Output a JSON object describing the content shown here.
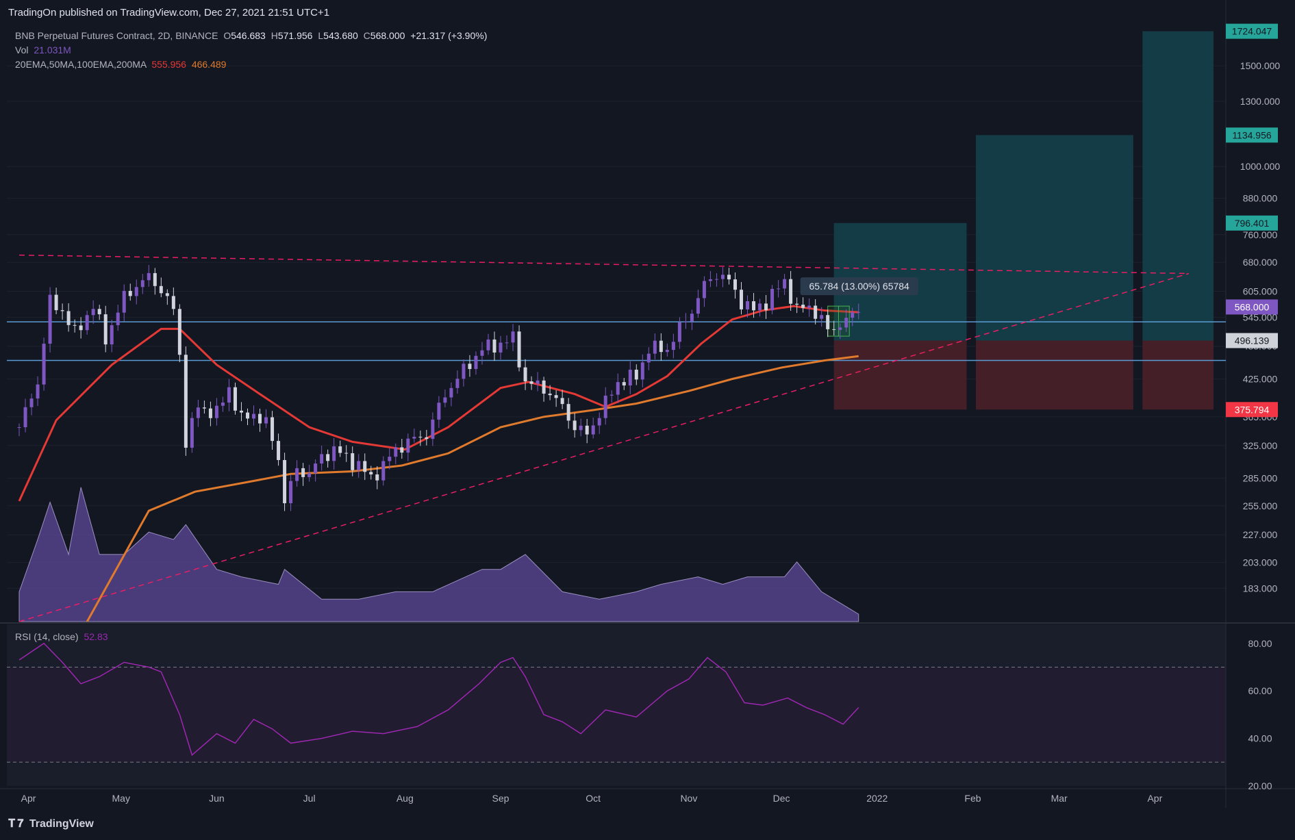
{
  "header": {
    "published": "TradingOn published on TradingView.com, Dec 27, 2021 21:51 UTC+1"
  },
  "legend": {
    "symbol": "BNB Perpetual Futures Contract, 2D, BINANCE",
    "o_label": "O",
    "o": "546.683",
    "h_label": "H",
    "h": "571.956",
    "l_label": "L",
    "l": "543.680",
    "c_label": "C",
    "c": "568.000",
    "change": "+21.317 (+3.90%)",
    "vol_label": "Vol",
    "vol": "21.031M",
    "ma_label": "20EMA,50MA,100EMA,200MA",
    "ma1": "555.956",
    "ma2": "466.489",
    "rsi_label": "RSI (14, close)",
    "rsi": "52.83"
  },
  "footer": {
    "brand": "TradingView"
  },
  "colors": {
    "background": "#131722",
    "bull": "#7e57c2",
    "bear": "#d1d4dc",
    "ema20": "#e53935",
    "ma50": "#e07a2c",
    "trend": "#e91e63",
    "hline": "#5b9bd5",
    "rsi": "#9c27b0",
    "target": "#14404a",
    "stop": "#4a2029"
  },
  "chart_data": {
    "type": "candlestick",
    "price_scale": "log",
    "ylim": [
      160,
      1800
    ],
    "yticks": [
      "1500.000",
      "1300.000",
      "1000.000",
      "880.000",
      "760.000",
      "680.000",
      "605.000",
      "545.000",
      "485.000",
      "425.000",
      "365.000",
      "325.000",
      "285.000",
      "255.000",
      "227.000",
      "203.000",
      "183.000"
    ],
    "xticks": [
      {
        "label": "Apr",
        "date": "2021-04-01"
      },
      {
        "label": "May",
        "date": "2021-05-01"
      },
      {
        "label": "Jun",
        "date": "2021-06-01"
      },
      {
        "label": "Jul",
        "date": "2021-07-01"
      },
      {
        "label": "Aug",
        "date": "2021-08-01"
      },
      {
        "label": "Sep",
        "date": "2021-09-01"
      },
      {
        "label": "Oct",
        "date": "2021-10-01"
      },
      {
        "label": "Nov",
        "date": "2021-11-01"
      },
      {
        "label": "Dec",
        "date": "2021-12-01"
      },
      {
        "label": "2022",
        "date": "2022-01-01"
      },
      {
        "label": "Feb",
        "date": "2022-02-01"
      },
      {
        "label": "Mar",
        "date": "2022-03-01"
      },
      {
        "label": "Apr",
        "date": "2022-04-01"
      }
    ],
    "price_path": [
      [
        "2021-03-29",
        350
      ],
      [
        "2021-04-04",
        420
      ],
      [
        "2021-04-08",
        580
      ],
      [
        "2021-04-12",
        560
      ],
      [
        "2021-04-16",
        510
      ],
      [
        "2021-04-22",
        570
      ],
      [
        "2021-04-26",
        500
      ],
      [
        "2021-05-02",
        590
      ],
      [
        "2021-05-06",
        620
      ],
      [
        "2021-05-10",
        640
      ],
      [
        "2021-05-14",
        610
      ],
      [
        "2021-05-18",
        560
      ],
      [
        "2021-05-20",
        470
      ],
      [
        "2021-05-22",
        330
      ],
      [
        "2021-05-26",
        380
      ],
      [
        "2021-06-01",
        370
      ],
      [
        "2021-06-05",
        410
      ],
      [
        "2021-06-09",
        360
      ],
      [
        "2021-06-13",
        370
      ],
      [
        "2021-06-17",
        355
      ],
      [
        "2021-06-21",
        310
      ],
      [
        "2021-06-23",
        260
      ],
      [
        "2021-06-27",
        295
      ],
      [
        "2021-07-01",
        290
      ],
      [
        "2021-07-05",
        310
      ],
      [
        "2021-07-09",
        320
      ],
      [
        "2021-07-13",
        310
      ],
      [
        "2021-07-17",
        300
      ],
      [
        "2021-07-21",
        285
      ],
      [
        "2021-07-25",
        300
      ],
      [
        "2021-07-29",
        320
      ],
      [
        "2021-08-02",
        330
      ],
      [
        "2021-08-08",
        340
      ],
      [
        "2021-08-14",
        400
      ],
      [
        "2021-08-20",
        440
      ],
      [
        "2021-08-26",
        480
      ],
      [
        "2021-09-01",
        490
      ],
      [
        "2021-09-05",
        500
      ],
      [
        "2021-09-09",
        420
      ],
      [
        "2021-09-15",
        410
      ],
      [
        "2021-09-21",
        380
      ],
      [
        "2021-09-25",
        350
      ],
      [
        "2021-09-29",
        340
      ],
      [
        "2021-10-03",
        370
      ],
      [
        "2021-10-09",
        420
      ],
      [
        "2021-10-15",
        430
      ],
      [
        "2021-10-19",
        480
      ],
      [
        "2021-10-25",
        480
      ],
      [
        "2021-10-29",
        520
      ],
      [
        "2021-11-02",
        560
      ],
      [
        "2021-11-06",
        620
      ],
      [
        "2021-11-10",
        650
      ],
      [
        "2021-11-14",
        630
      ],
      [
        "2021-11-18",
        580
      ],
      [
        "2021-11-22",
        560
      ],
      [
        "2021-11-26",
        580
      ],
      [
        "2021-12-02",
        630
      ],
      [
        "2021-12-06",
        560
      ],
      [
        "2021-12-10",
        570
      ],
      [
        "2021-12-14",
        540
      ],
      [
        "2021-12-16",
        515
      ],
      [
        "2021-12-20",
        530
      ],
      [
        "2021-12-24",
        547
      ],
      [
        "2021-12-26",
        568
      ]
    ],
    "series": [
      {
        "name": "20EMA",
        "values": [
          [
            "2021-03-29",
            260
          ],
          [
            "2021-04-10",
            360
          ],
          [
            "2021-04-28",
            450
          ],
          [
            "2021-05-14",
            520
          ],
          [
            "2021-05-20",
            520
          ],
          [
            "2021-06-01",
            450
          ],
          [
            "2021-06-15",
            400
          ],
          [
            "2021-07-01",
            350
          ],
          [
            "2021-07-15",
            330
          ],
          [
            "2021-08-01",
            320
          ],
          [
            "2021-08-15",
            350
          ],
          [
            "2021-09-01",
            410
          ],
          [
            "2021-09-10",
            420
          ],
          [
            "2021-09-25",
            400
          ],
          [
            "2021-10-05",
            380
          ],
          [
            "2021-10-15",
            400
          ],
          [
            "2021-10-25",
            430
          ],
          [
            "2021-11-05",
            490
          ],
          [
            "2021-11-15",
            540
          ],
          [
            "2021-11-25",
            560
          ],
          [
            "2021-12-05",
            570
          ],
          [
            "2021-12-15",
            560
          ],
          [
            "2021-12-26",
            556
          ]
        ]
      },
      {
        "name": "50MA",
        "values": [
          [
            "2021-04-20",
            160
          ],
          [
            "2021-05-10",
            250
          ],
          [
            "2021-05-25",
            270
          ],
          [
            "2021-06-10",
            280
          ],
          [
            "2021-06-25",
            290
          ],
          [
            "2021-07-15",
            293
          ],
          [
            "2021-07-31",
            300
          ],
          [
            "2021-08-15",
            315
          ],
          [
            "2021-09-01",
            350
          ],
          [
            "2021-09-15",
            365
          ],
          [
            "2021-10-01",
            375
          ],
          [
            "2021-10-15",
            385
          ],
          [
            "2021-11-01",
            405
          ],
          [
            "2021-11-15",
            425
          ],
          [
            "2021-12-01",
            445
          ],
          [
            "2021-12-15",
            458
          ],
          [
            "2021-12-26",
            466
          ]
        ]
      }
    ],
    "volume": [
      [
        "2021-03-29",
        0.2
      ],
      [
        "2021-04-04",
        0.55
      ],
      [
        "2021-04-08",
        0.8
      ],
      [
        "2021-04-14",
        0.45
      ],
      [
        "2021-04-18",
        0.9
      ],
      [
        "2021-04-24",
        0.45
      ],
      [
        "2021-05-02",
        0.45
      ],
      [
        "2021-05-10",
        0.6
      ],
      [
        "2021-05-18",
        0.55
      ],
      [
        "2021-05-22",
        0.65
      ],
      [
        "2021-06-01",
        0.35
      ],
      [
        "2021-06-09",
        0.3
      ],
      [
        "2021-06-21",
        0.25
      ],
      [
        "2021-06-23",
        0.35
      ],
      [
        "2021-07-05",
        0.15
      ],
      [
        "2021-07-17",
        0.15
      ],
      [
        "2021-07-29",
        0.2
      ],
      [
        "2021-08-10",
        0.2
      ],
      [
        "2021-08-26",
        0.35
      ],
      [
        "2021-09-01",
        0.35
      ],
      [
        "2021-09-09",
        0.45
      ],
      [
        "2021-09-21",
        0.2
      ],
      [
        "2021-10-03",
        0.15
      ],
      [
        "2021-10-15",
        0.2
      ],
      [
        "2021-10-23",
        0.25
      ],
      [
        "2021-11-04",
        0.3
      ],
      [
        "2021-11-12",
        0.25
      ],
      [
        "2021-11-20",
        0.3
      ],
      [
        "2021-12-02",
        0.3
      ],
      [
        "2021-12-06",
        0.4
      ],
      [
        "2021-12-14",
        0.2
      ],
      [
        "2021-12-26",
        0.05
      ]
    ],
    "rsi": [
      [
        "2021-03-29",
        73
      ],
      [
        "2021-04-06",
        80
      ],
      [
        "2021-04-12",
        72
      ],
      [
        "2021-04-18",
        63
      ],
      [
        "2021-04-24",
        66
      ],
      [
        "2021-05-02",
        72
      ],
      [
        "2021-05-10",
        70
      ],
      [
        "2021-05-14",
        68
      ],
      [
        "2021-05-20",
        50
      ],
      [
        "2021-05-24",
        33
      ],
      [
        "2021-06-01",
        42
      ],
      [
        "2021-06-07",
        38
      ],
      [
        "2021-06-13",
        48
      ],
      [
        "2021-06-19",
        44
      ],
      [
        "2021-06-25",
        38
      ],
      [
        "2021-07-05",
        40
      ],
      [
        "2021-07-15",
        43
      ],
      [
        "2021-07-25",
        42
      ],
      [
        "2021-08-05",
        45
      ],
      [
        "2021-08-15",
        52
      ],
      [
        "2021-08-25",
        63
      ],
      [
        "2021-09-01",
        72
      ],
      [
        "2021-09-05",
        74
      ],
      [
        "2021-09-09",
        66
      ],
      [
        "2021-09-15",
        50
      ],
      [
        "2021-09-21",
        47
      ],
      [
        "2021-09-27",
        42
      ],
      [
        "2021-10-05",
        52
      ],
      [
        "2021-10-15",
        49
      ],
      [
        "2021-10-25",
        60
      ],
      [
        "2021-11-01",
        65
      ],
      [
        "2021-11-07",
        74
      ],
      [
        "2021-11-13",
        68
      ],
      [
        "2021-11-19",
        55
      ],
      [
        "2021-11-25",
        54
      ],
      [
        "2021-12-03",
        57
      ],
      [
        "2021-12-09",
        53
      ],
      [
        "2021-12-15",
        50
      ],
      [
        "2021-12-21",
        46
      ],
      [
        "2021-12-26",
        53
      ]
    ],
    "rsi_ylim": [
      20,
      88
    ],
    "rsi_ticks": [
      "80.00",
      "60.00",
      "40.00",
      "20.00"
    ],
    "rsi_bands": [
      30,
      70
    ],
    "horizontal_levels": [
      535,
      458
    ],
    "trendlines": [
      {
        "from": [
          "2021-03-29",
          700
        ],
        "to": [
          "2022-04-12",
          650
        ],
        "style": "dashed"
      },
      {
        "from": [
          "2021-03-29",
          160
        ],
        "to": [
          "2022-04-12",
          650
        ],
        "style": "dashed"
      }
    ],
    "measure": {
      "label": "65.784 (13.00%) 65784",
      "from": [
        "2021-12-16",
        505
      ],
      "to": [
        "2021-12-23",
        570
      ]
    },
    "positions": [
      {
        "start": "2021-12-18",
        "end": "2022-01-30",
        "target": 796.401,
        "entry": 496.139,
        "stop": 375.794
      },
      {
        "start": "2022-02-02",
        "end": "2022-03-25",
        "target": 1134.956,
        "entry": 496.139,
        "stop": 375.794
      },
      {
        "start": "2022-03-28",
        "end": "2022-04-20",
        "target": 1724.047,
        "entry": 496.139,
        "stop": 375.794
      }
    ],
    "price_labels": [
      {
        "value": "1724.047",
        "price": 1724.047,
        "color": "#26a69a"
      },
      {
        "value": "1134.956",
        "price": 1134.956,
        "color": "#26a69a"
      },
      {
        "value": "796.401",
        "price": 796.401,
        "color": "#26a69a"
      },
      {
        "value": "568.000",
        "price": 568,
        "color": "#7e57c2"
      },
      {
        "value": "496.139",
        "price": 496.139,
        "color": "#cfd2d8"
      },
      {
        "value": "375.794",
        "price": 375.794,
        "color": "#f23645"
      }
    ]
  }
}
